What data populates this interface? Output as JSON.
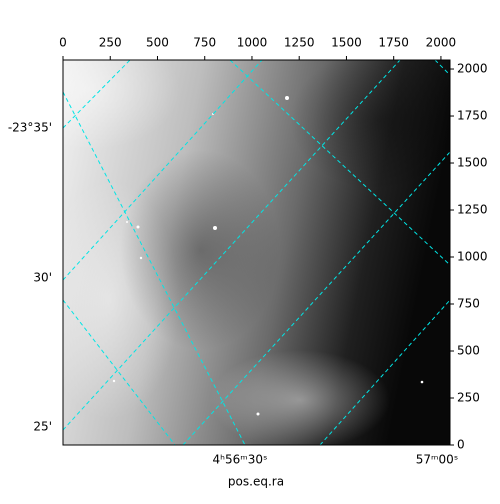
{
  "chart_data": {
    "type": "image",
    "xlabel": "pos.eq.ra",
    "xlim": [
      0,
      2048
    ],
    "xticks": [
      0,
      250,
      500,
      750,
      1000,
      1250,
      1500,
      1750,
      2000
    ],
    "ylim": [
      0,
      2048
    ],
    "yticks": [
      0,
      250,
      500,
      750,
      1000,
      1250,
      1500,
      1750,
      2000
    ],
    "ra_tick_labels": [
      "4ʰ56ᵐ30ˢ",
      "57ᵐ00ˢ"
    ],
    "dec_tick_labels": [
      "-23°35'",
      "30'",
      "25'"
    ],
    "grid_color": "#00e5e5"
  }
}
